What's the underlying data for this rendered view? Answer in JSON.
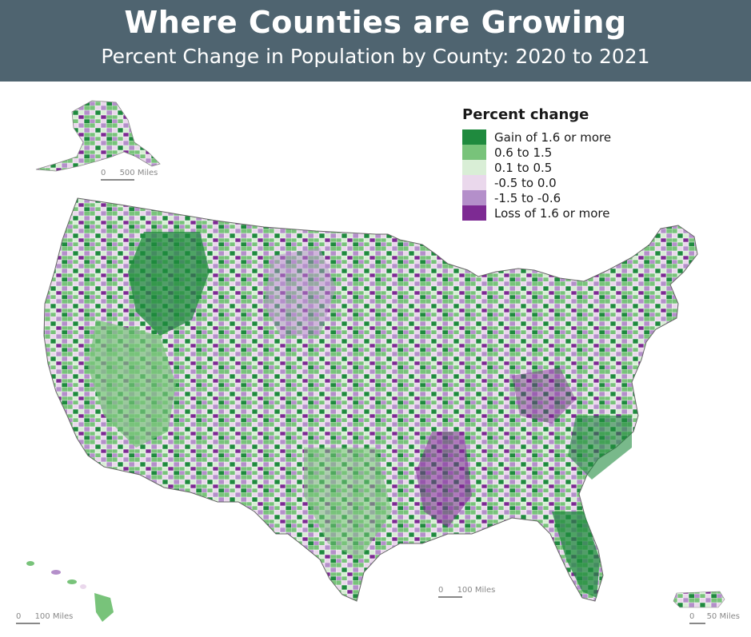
{
  "header": {
    "title": "Where Counties are Growing",
    "subtitle": "Percent Change in Population by County: 2020 to 2021"
  },
  "legend": {
    "title": "Percent change",
    "items": [
      {
        "label": "Gain of 1.6 or more",
        "color": "#1f8a3e"
      },
      {
        "label": "0.6 to 1.5",
        "color": "#78c37a"
      },
      {
        "label": "0.1 to 0.5",
        "color": "#d9eed6"
      },
      {
        "label": "-0.5 to 0.0",
        "color": "#ead8ec"
      },
      {
        "label": "-1.5 to -0.6",
        "color": "#b48fca"
      },
      {
        "label": "Loss of 1.6 or more",
        "color": "#7d2a93"
      }
    ]
  },
  "scales": {
    "alaska": "500 Miles",
    "conus": "100 Miles",
    "hawaii": "100 Miles",
    "puerto_rico": "50 Miles",
    "zero": "0"
  }
}
